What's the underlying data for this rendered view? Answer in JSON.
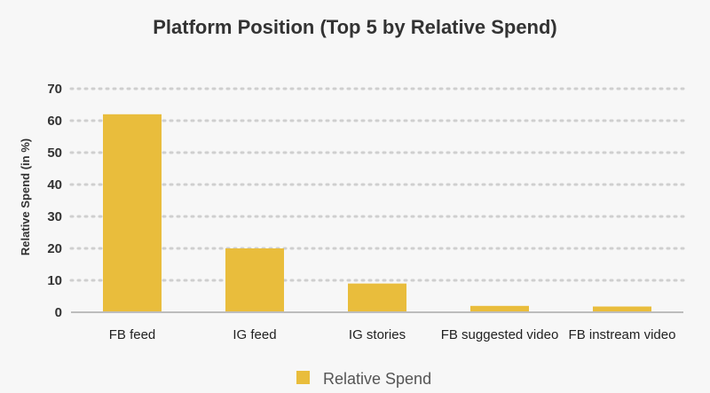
{
  "chart_data": {
    "type": "bar",
    "title": "Platform Position (Top 5 by Relative Spend)",
    "xlabel": "",
    "ylabel": "Relative Spend (in %)",
    "categories": [
      "FB feed",
      "IG feed",
      "IG stories",
      "FB suggested video",
      "FB instream video"
    ],
    "series": [
      {
        "name": "Relative Spend",
        "values": [
          62,
          20,
          9,
          2,
          1.8
        ]
      }
    ],
    "ylim": [
      0,
      70
    ],
    "yticks": [
      0,
      10,
      20,
      30,
      40,
      50,
      60,
      70
    ],
    "grid": true,
    "legend_position": "bottom-center",
    "colors": {
      "bar": "#E9BD3C",
      "grid": "#cfcfcf",
      "axis": "#bdbdbd"
    }
  }
}
